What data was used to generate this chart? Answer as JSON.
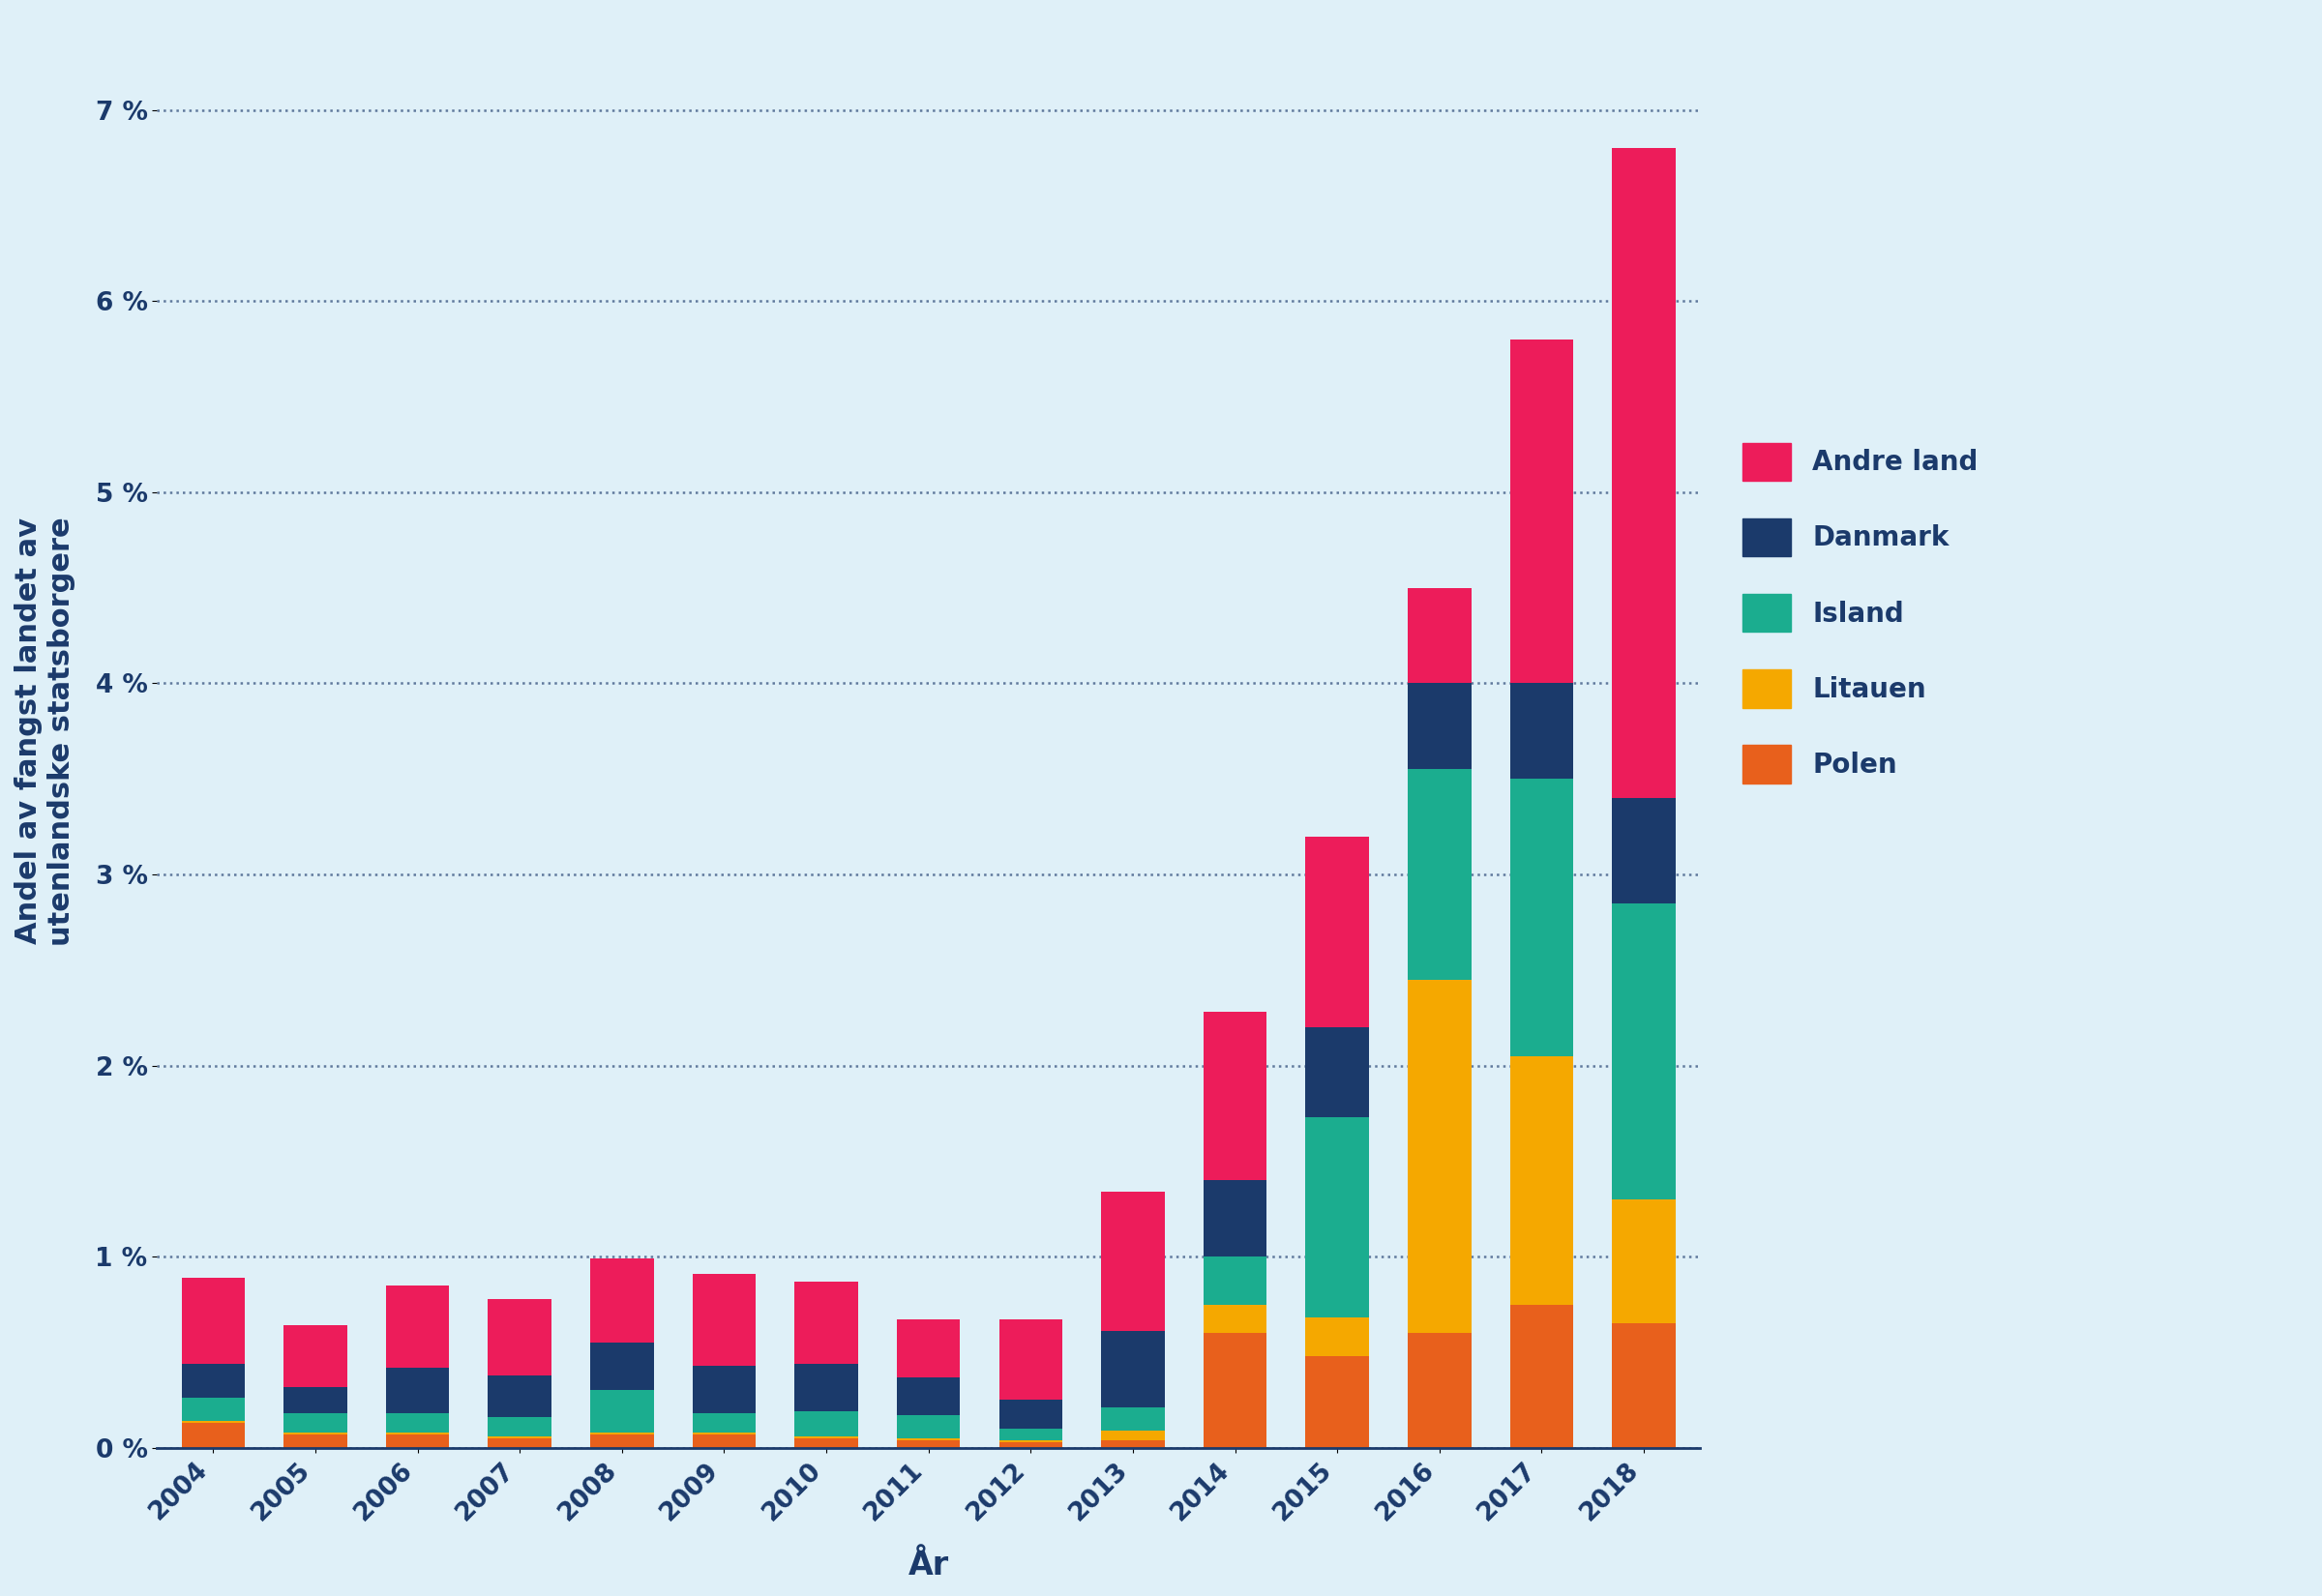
{
  "years": [
    2004,
    2005,
    2006,
    2007,
    2008,
    2009,
    2010,
    2011,
    2012,
    2013,
    2014,
    2015,
    2016,
    2017,
    2018
  ],
  "categories": [
    "Polen",
    "Litauen",
    "Island",
    "Danmark",
    "Andre land"
  ],
  "colors": [
    "#E8601C",
    "#F5A800",
    "#1BAD8F",
    "#1B3A6B",
    "#ED1C5A"
  ],
  "data": {
    "Polen": [
      0.13,
      0.07,
      0.07,
      0.05,
      0.07,
      0.07,
      0.05,
      0.04,
      0.03,
      0.04,
      0.6,
      0.48,
      0.6,
      0.75,
      0.65
    ],
    "Litauen": [
      0.01,
      0.01,
      0.01,
      0.01,
      0.01,
      0.01,
      0.01,
      0.01,
      0.01,
      0.05,
      0.15,
      0.2,
      1.85,
      1.3,
      0.65
    ],
    "Island": [
      0.12,
      0.1,
      0.1,
      0.1,
      0.22,
      0.1,
      0.13,
      0.12,
      0.06,
      0.12,
      0.25,
      1.05,
      1.1,
      1.45,
      1.55
    ],
    "Danmark": [
      0.18,
      0.14,
      0.24,
      0.22,
      0.25,
      0.25,
      0.25,
      0.2,
      0.15,
      0.4,
      0.4,
      0.47,
      0.45,
      0.5,
      0.55
    ],
    "Andre land": [
      0.45,
      0.32,
      0.43,
      0.4,
      0.44,
      0.48,
      0.43,
      0.3,
      0.42,
      0.73,
      0.88,
      1.0,
      0.5,
      1.8,
      3.4
    ]
  },
  "ylim": [
    0,
    7.5
  ],
  "yticks": [
    0,
    1,
    2,
    3,
    4,
    5,
    6,
    7
  ],
  "ytick_labels": [
    "0 %",
    "1 %",
    "2 %",
    "3 %",
    "4 %",
    "5 %",
    "6 %",
    "7 %"
  ],
  "xlabel": "År",
  "ylabel": "Andel av fangst landet av\nutenlandske statsborgere",
  "background_color": "#DFF0F8",
  "label_fontsize": 22,
  "tick_fontsize": 19,
  "legend_fontsize": 20
}
